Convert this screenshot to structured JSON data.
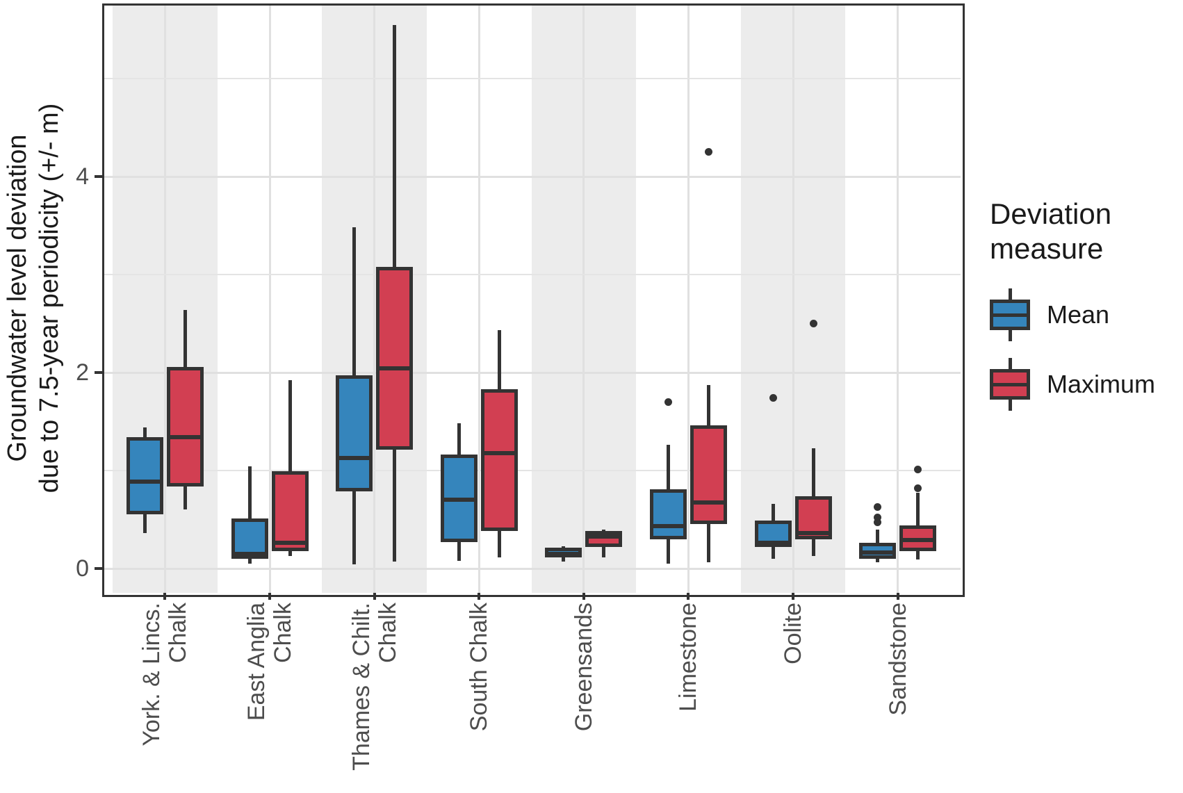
{
  "figure": {
    "y_axis": {
      "title_line1": "Groundwater level deviation",
      "title_line2": "due to 7.5-year periodicity (+/- m)",
      "tick_labels": [
        "0",
        "2",
        "4"
      ]
    },
    "legend": {
      "title": "Deviation measure",
      "entries": [
        {
          "label": "Mean",
          "color": "#3585BC"
        },
        {
          "label": "Maximum",
          "color": "#D23F52"
        }
      ]
    }
  },
  "colors": {
    "mean_fill": "#3585BC",
    "maximum_fill": "#D23F52",
    "stroke": "#333333",
    "stripe": "#ECECEC",
    "grid": "#E0E0E0",
    "tick_text": "#4D4D4D",
    "title_text": "#1A1A1A"
  },
  "chart_data": {
    "type": "boxplot",
    "title": "",
    "xlabel": "",
    "ylabel": "Groundwater level deviation due to 7.5-year periodicity (+/- m)",
    "ylim": [
      -0.25,
      5.8
    ],
    "yticks_major": [
      0,
      2,
      4
    ],
    "yticks_minor": [
      1,
      3,
      5
    ],
    "grid": true,
    "legend_position": "right",
    "legend_title": "Deviation measure",
    "shaded_categories": [
      0,
      2,
      4,
      6
    ],
    "categories": [
      "York. & Lincs. Chalk",
      "East Anglia Chalk",
      "Thames & Chilt. Chalk",
      "South Chalk",
      "Greensands",
      "Limestone",
      "Oolite",
      "Sandstone"
    ],
    "category_label_lines": [
      [
        "York. & Lincs.",
        "Chalk"
      ],
      [
        "East Anglia",
        "Chalk"
      ],
      [
        "Thames & Chilt.",
        "Chalk"
      ],
      [
        "South Chalk"
      ],
      [
        "Greensands"
      ],
      [
        "Limestone"
      ],
      [
        "Oolite"
      ],
      [
        "Sandstone"
      ]
    ],
    "series": [
      {
        "name": "Mean",
        "color": "#3585BC",
        "boxes": [
          {
            "whisker_low": 0.36,
            "q1": 0.55,
            "median": 0.89,
            "q3": 1.34,
            "whisker_high": 1.44,
            "outliers": []
          },
          {
            "whisker_low": 0.05,
            "q1": 0.1,
            "median": 0.15,
            "q3": 0.51,
            "whisker_high": 1.04,
            "outliers": []
          },
          {
            "whisker_low": 0.04,
            "q1": 0.79,
            "median": 1.13,
            "q3": 1.97,
            "whisker_high": 3.48,
            "outliers": []
          },
          {
            "whisker_low": 0.08,
            "q1": 0.27,
            "median": 0.7,
            "q3": 1.16,
            "whisker_high": 1.48,
            "outliers": []
          },
          {
            "whisker_low": 0.07,
            "q1": 0.11,
            "median": 0.15,
            "q3": 0.21,
            "whisker_high": 0.23,
            "outliers": []
          },
          {
            "whisker_low": 0.05,
            "q1": 0.3,
            "median": 0.43,
            "q3": 0.81,
            "whisker_high": 1.26,
            "outliers": [
              1.7
            ]
          },
          {
            "whisker_low": 0.1,
            "q1": 0.22,
            "median": 0.26,
            "q3": 0.49,
            "whisker_high": 0.66,
            "outliers": [
              1.74
            ]
          },
          {
            "whisker_low": 0.06,
            "q1": 0.1,
            "median": 0.16,
            "q3": 0.26,
            "whisker_high": 0.4,
            "outliers": [
              0.47,
              0.52,
              0.63
            ]
          }
        ]
      },
      {
        "name": "Maximum",
        "color": "#D23F52",
        "boxes": [
          {
            "whisker_low": 0.6,
            "q1": 0.84,
            "median": 1.34,
            "q3": 2.06,
            "whisker_high": 2.64,
            "outliers": []
          },
          {
            "whisker_low": 0.13,
            "q1": 0.18,
            "median": 0.26,
            "q3": 0.99,
            "whisker_high": 1.92,
            "outliers": []
          },
          {
            "whisker_low": 0.07,
            "q1": 1.21,
            "median": 2.04,
            "q3": 3.08,
            "whisker_high": 5.55,
            "outliers": []
          },
          {
            "whisker_low": 0.11,
            "q1": 0.38,
            "median": 1.18,
            "q3": 1.83,
            "whisker_high": 2.43,
            "outliers": []
          },
          {
            "whisker_low": 0.11,
            "q1": 0.22,
            "median": 0.33,
            "q3": 0.38,
            "whisker_high": 0.4,
            "outliers": []
          },
          {
            "whisker_low": 0.06,
            "q1": 0.45,
            "median": 0.67,
            "q3": 1.46,
            "whisker_high": 1.87,
            "outliers": [
              4.25
            ]
          },
          {
            "whisker_low": 0.13,
            "q1": 0.3,
            "median": 0.36,
            "q3": 0.74,
            "whisker_high": 1.23,
            "outliers": [
              2.5
            ]
          },
          {
            "whisker_low": 0.09,
            "q1": 0.18,
            "median": 0.29,
            "q3": 0.44,
            "whisker_high": 0.77,
            "outliers": [
              0.82,
              1.01
            ]
          }
        ]
      }
    ]
  }
}
